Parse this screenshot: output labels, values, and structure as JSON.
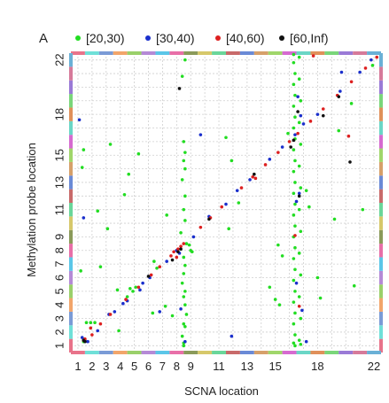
{
  "panel_label": "A",
  "chart_data": {
    "type": "scatter",
    "xlabel": "SCNA location",
    "ylabel": "Methylation probe location",
    "x_ticks": [
      "1",
      "2",
      "3",
      "4",
      "5",
      "6",
      "7",
      "8",
      "9",
      "11",
      "13",
      "15",
      "18",
      "22"
    ],
    "y_ticks": [
      "1",
      "2",
      "3",
      "4",
      "5",
      "6",
      "7",
      "8",
      "9",
      "11",
      "13",
      "15",
      "18",
      "22"
    ],
    "grid": true,
    "legend_position": "top",
    "series": [
      {
        "name": "[20,30)",
        "color": "#22dd22",
        "points": [
          [
            1.6,
            2.7
          ],
          [
            1.9,
            2.7
          ],
          [
            2.2,
            2.7
          ],
          [
            1.4,
            1.3
          ],
          [
            3.9,
            2.1
          ],
          [
            3.8,
            5.1
          ],
          [
            4.7,
            5.2
          ],
          [
            4.9,
            5.0
          ],
          [
            5.1,
            5.3
          ],
          [
            4.5,
            4.6
          ],
          [
            7.7,
            3.2
          ],
          [
            7.2,
            3.9
          ],
          [
            6.3,
            3.4
          ],
          [
            3.1,
            9.6
          ],
          [
            4.3,
            12.1
          ],
          [
            1.4,
            15.4
          ],
          [
            1.2,
            6.5
          ],
          [
            2.6,
            6.8
          ],
          [
            5.3,
            15.1
          ],
          [
            8.4,
            20.8
          ],
          [
            8.5,
            1.0
          ],
          [
            8.5,
            1.2
          ],
          [
            8.4,
            1.7
          ],
          [
            8.6,
            2.4
          ],
          [
            8.5,
            2.6
          ],
          [
            8.7,
            3.3
          ],
          [
            8.6,
            4.0
          ],
          [
            8.5,
            4.6
          ],
          [
            8.6,
            5.0
          ],
          [
            8.4,
            5.6
          ],
          [
            8.5,
            6.3
          ],
          [
            8.6,
            6.9
          ],
          [
            8.5,
            7.5
          ],
          [
            8.7,
            8.5
          ],
          [
            8.3,
            9.3
          ],
          [
            8.6,
            10.2
          ],
          [
            8.5,
            11.0
          ],
          [
            8.6,
            12.0
          ],
          [
            8.4,
            13.2
          ],
          [
            8.6,
            14.0
          ],
          [
            8.5,
            14.6
          ],
          [
            8.6,
            15.2
          ],
          [
            8.5,
            16.0
          ],
          [
            8.6,
            22.0
          ],
          [
            7.3,
            10.6
          ],
          [
            11.7,
            9.6
          ],
          [
            11.9,
            14.6
          ],
          [
            9.0,
            8.0
          ],
          [
            9.1,
            7.9
          ],
          [
            8.9,
            8.4
          ],
          [
            11.5,
            16.3
          ],
          [
            12.4,
            11.5
          ],
          [
            14.6,
            5.3
          ],
          [
            15.0,
            4.4
          ],
          [
            15.3,
            4.0
          ],
          [
            15.5,
            7.6
          ],
          [
            15.2,
            8.4
          ],
          [
            15.9,
            16.6
          ],
          [
            16.3,
            22.4
          ],
          [
            16.3,
            21.8
          ],
          [
            16.4,
            21.0
          ],
          [
            16.3,
            20.2
          ],
          [
            16.4,
            19.4
          ],
          [
            16.3,
            18.6
          ],
          [
            16.4,
            17.8
          ],
          [
            16.3,
            17.0
          ],
          [
            16.4,
            16.2
          ],
          [
            16.3,
            15.4
          ],
          [
            16.4,
            14.6
          ],
          [
            16.3,
            13.8
          ],
          [
            16.4,
            13.0
          ],
          [
            16.3,
            12.2
          ],
          [
            16.4,
            11.4
          ],
          [
            16.3,
            10.6
          ],
          [
            16.4,
            9.8
          ],
          [
            16.3,
            9.0
          ],
          [
            16.4,
            8.2
          ],
          [
            16.3,
            7.4
          ],
          [
            16.4,
            6.6
          ],
          [
            16.3,
            5.8
          ],
          [
            16.4,
            5.0
          ],
          [
            16.3,
            4.2
          ],
          [
            16.4,
            3.4
          ],
          [
            16.3,
            2.6
          ],
          [
            16.4,
            1.8
          ],
          [
            16.3,
            1.2
          ],
          [
            16.4,
            1.0
          ],
          [
            16.7,
            22.2
          ],
          [
            16.7,
            20.6
          ],
          [
            16.8,
            19.0
          ],
          [
            16.7,
            17.4
          ],
          [
            16.8,
            15.8
          ],
          [
            16.7,
            14.2
          ],
          [
            16.8,
            12.6
          ],
          [
            16.7,
            11.0
          ],
          [
            16.8,
            9.4
          ],
          [
            16.7,
            7.8
          ],
          [
            16.8,
            6.2
          ],
          [
            16.7,
            4.6
          ],
          [
            16.8,
            3.0
          ],
          [
            16.7,
            1.4
          ],
          [
            16.8,
            1.1
          ],
          [
            17.2,
            12.4
          ],
          [
            17.4,
            11.2
          ],
          [
            18.2,
            4.5
          ],
          [
            18.0,
            6.0
          ],
          [
            19.5,
            16.8
          ],
          [
            19.2,
            10.3
          ],
          [
            20.6,
            5.4
          ],
          [
            21.2,
            11.0
          ],
          [
            20.4,
            18.8
          ],
          [
            21.9,
            21.6
          ],
          [
            6.4,
            7.2
          ],
          [
            6.6,
            6.7
          ],
          [
            3.3,
            15.8
          ],
          [
            2.4,
            10.9
          ],
          [
            4.6,
            13.6
          ],
          [
            1.3,
            14.1
          ]
        ]
      },
      {
        "name": "[30,40)",
        "color": "#1a2fcc",
        "points": [
          [
            1.5,
            1.4
          ],
          [
            1.3,
            1.6
          ],
          [
            1.7,
            1.3
          ],
          [
            2.4,
            2.1
          ],
          [
            3.6,
            3.5
          ],
          [
            4.2,
            4.1
          ],
          [
            4.5,
            4.3
          ],
          [
            5.4,
            5.1
          ],
          [
            5.6,
            5.6
          ],
          [
            6.1,
            6.0
          ],
          [
            7.3,
            7.2
          ],
          [
            8.0,
            8.0
          ],
          [
            8.2,
            7.8
          ],
          [
            9.2,
            9.0
          ],
          [
            10.3,
            10.5
          ],
          [
            11.5,
            11.4
          ],
          [
            12.3,
            12.4
          ],
          [
            13.2,
            13.2
          ],
          [
            14.6,
            14.7
          ],
          [
            15.5,
            15.6
          ],
          [
            16.4,
            16.5
          ],
          [
            17.0,
            17.3
          ],
          [
            18.0,
            18.0
          ],
          [
            19.6,
            19.7
          ],
          [
            21.0,
            21.1
          ],
          [
            1.1,
            17.6
          ],
          [
            1.4,
            10.4
          ],
          [
            16.6,
            19.3
          ],
          [
            16.8,
            17.9
          ],
          [
            16.5,
            11.6
          ],
          [
            16.7,
            12.2
          ],
          [
            16.5,
            5.6
          ],
          [
            16.9,
            3.6
          ],
          [
            17.2,
            1.3
          ],
          [
            11.9,
            1.7
          ],
          [
            8.6,
            1.3
          ],
          [
            8.3,
            3.7
          ],
          [
            9.7,
            16.5
          ],
          [
            6.8,
            3.5
          ],
          [
            3.2,
            3.3
          ],
          [
            19.7,
            21.1
          ],
          [
            21.8,
            22.0
          ]
        ]
      },
      {
        "name": "[40,60)",
        "color": "#dd2020",
        "points": [
          [
            1.4,
            1.4
          ],
          [
            1.5,
            1.5
          ],
          [
            2.0,
            1.8
          ],
          [
            2.6,
            2.6
          ],
          [
            3.3,
            3.3
          ],
          [
            4.4,
            4.4
          ],
          [
            5.3,
            5.3
          ],
          [
            6.2,
            6.2
          ],
          [
            6.8,
            6.8
          ],
          [
            7.6,
            7.6
          ],
          [
            8.3,
            8.3
          ],
          [
            8.1,
            8.1
          ],
          [
            8.5,
            8.5
          ],
          [
            9.7,
            9.7
          ],
          [
            10.4,
            10.4
          ],
          [
            11.2,
            11.2
          ],
          [
            12.6,
            12.6
          ],
          [
            13.4,
            13.4
          ],
          [
            14.3,
            14.3
          ],
          [
            15.2,
            15.2
          ],
          [
            16.0,
            16.0
          ],
          [
            16.6,
            16.6
          ],
          [
            17.5,
            17.5
          ],
          [
            18.4,
            18.4
          ],
          [
            19.4,
            19.4
          ],
          [
            20.4,
            20.4
          ],
          [
            21.4,
            21.4
          ],
          [
            22.2,
            22.2
          ],
          [
            1.9,
            2.3
          ],
          [
            13.6,
            13.3
          ],
          [
            16.4,
            9.1
          ],
          [
            16.7,
            3.9
          ],
          [
            17.7,
            22.3
          ],
          [
            20.2,
            16.4
          ],
          [
            8.0,
            7.5
          ],
          [
            7.8,
            7.9
          ]
        ]
      },
      {
        "name": "[60,Inf)",
        "color": "#111111",
        "points": [
          [
            1.4,
            1.4
          ],
          [
            1.5,
            1.3
          ],
          [
            7.7,
            7.3
          ],
          [
            8.1,
            7.9
          ],
          [
            8.3,
            8.1
          ],
          [
            13.5,
            13.6
          ],
          [
            16.1,
            15.6
          ],
          [
            16.3,
            16.1
          ],
          [
            18.4,
            17.9
          ],
          [
            19.5,
            19.3
          ],
          [
            8.2,
            19.9
          ],
          [
            16.6,
            18.2
          ],
          [
            16.7,
            12.0
          ],
          [
            20.3,
            14.5
          ],
          [
            6.0,
            6.1
          ],
          [
            10.3,
            10.3
          ]
        ]
      }
    ]
  }
}
